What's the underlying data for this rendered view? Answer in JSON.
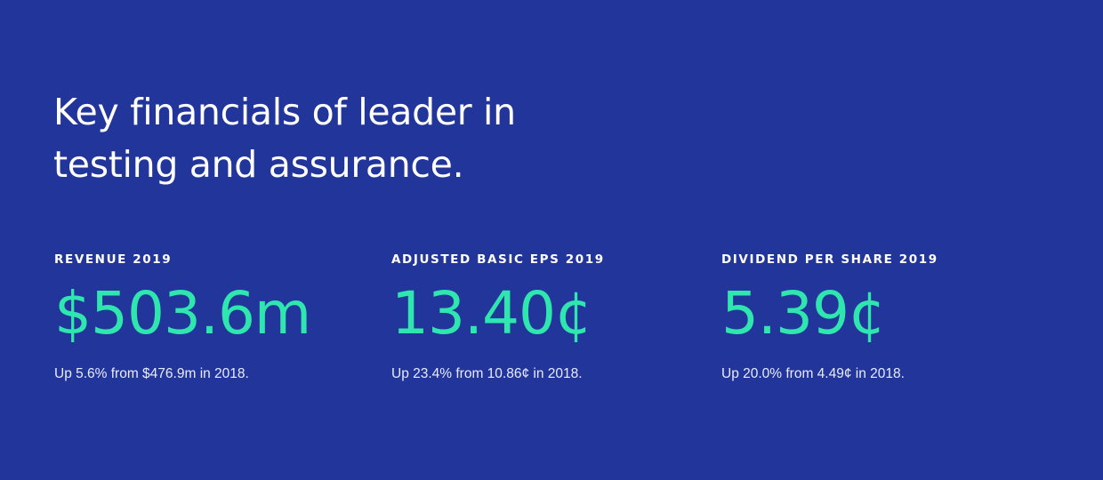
{
  "headline": {
    "line1": "Key financials of leader in",
    "line2": "testing and assurance."
  },
  "metrics": [
    {
      "label": "REVENUE 2019",
      "value": "$503.6m",
      "note": "Up 5.6% from $476.9m in 2018."
    },
    {
      "label": "ADJUSTED BASIC EPS 2019",
      "value": "13.40¢",
      "note": "Up 23.4% from 10.86¢ in 2018."
    },
    {
      "label": "DIVIDEND PER SHARE 2019",
      "value": "5.39¢",
      "note": "Up 20.0% from 4.49¢ in 2018."
    }
  ],
  "colors": {
    "background": "#22359b",
    "accent": "#2ee6ae",
    "text": "#ffffff"
  }
}
